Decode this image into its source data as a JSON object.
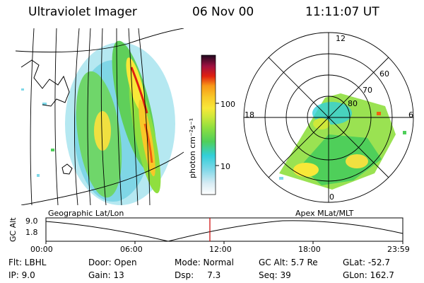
{
  "header": {
    "instrument": "Ultraviolet Imager",
    "date": "06 Nov 00",
    "time": "11:11:07 UT"
  },
  "colorbar": {
    "unit_label": "photon cm⁻²s⁻¹",
    "ticks": [
      "100",
      "10"
    ],
    "colors": [
      "#ffffff",
      "#e0ecf4",
      "#bfe0f0",
      "#7fd8e8",
      "#33cfd9",
      "#2fc7a0",
      "#4fcf5a",
      "#8fdf3f",
      "#cfe83a",
      "#f8e838",
      "#f8c828",
      "#f89818",
      "#f06010",
      "#e02010",
      "#a01040",
      "#601060",
      "#200820"
    ]
  },
  "geo_panel": {
    "label": "Geographic Lat/Lon"
  },
  "polar_panel": {
    "label": "Apex MLat/MLT",
    "mlt_labels": {
      "top": "12",
      "left": "18",
      "right": "6",
      "bottom": "0"
    },
    "lat_labels": [
      "60",
      "70",
      "80"
    ]
  },
  "altitude_plot": {
    "ylabel": "GC Alt",
    "yticks": [
      "9.0",
      "1.8"
    ],
    "xticks": [
      "00:00",
      "06:00",
      "12:00",
      "18:00",
      "23:59"
    ],
    "current_time_marker_color": "#cc0000"
  },
  "info": {
    "flt": "Flt: LBHL",
    "door": "Door: Open",
    "mode": "Mode: Normal",
    "gcalt": "GC Alt: 5.7 Re",
    "glat": "GLat: -52.7",
    "ip": "IP: 9.0",
    "gain": "Gain: 13",
    "dsp": "Dsp:     7.3",
    "seq": "Seq: 39",
    "glon": "GLon: 162.7"
  }
}
